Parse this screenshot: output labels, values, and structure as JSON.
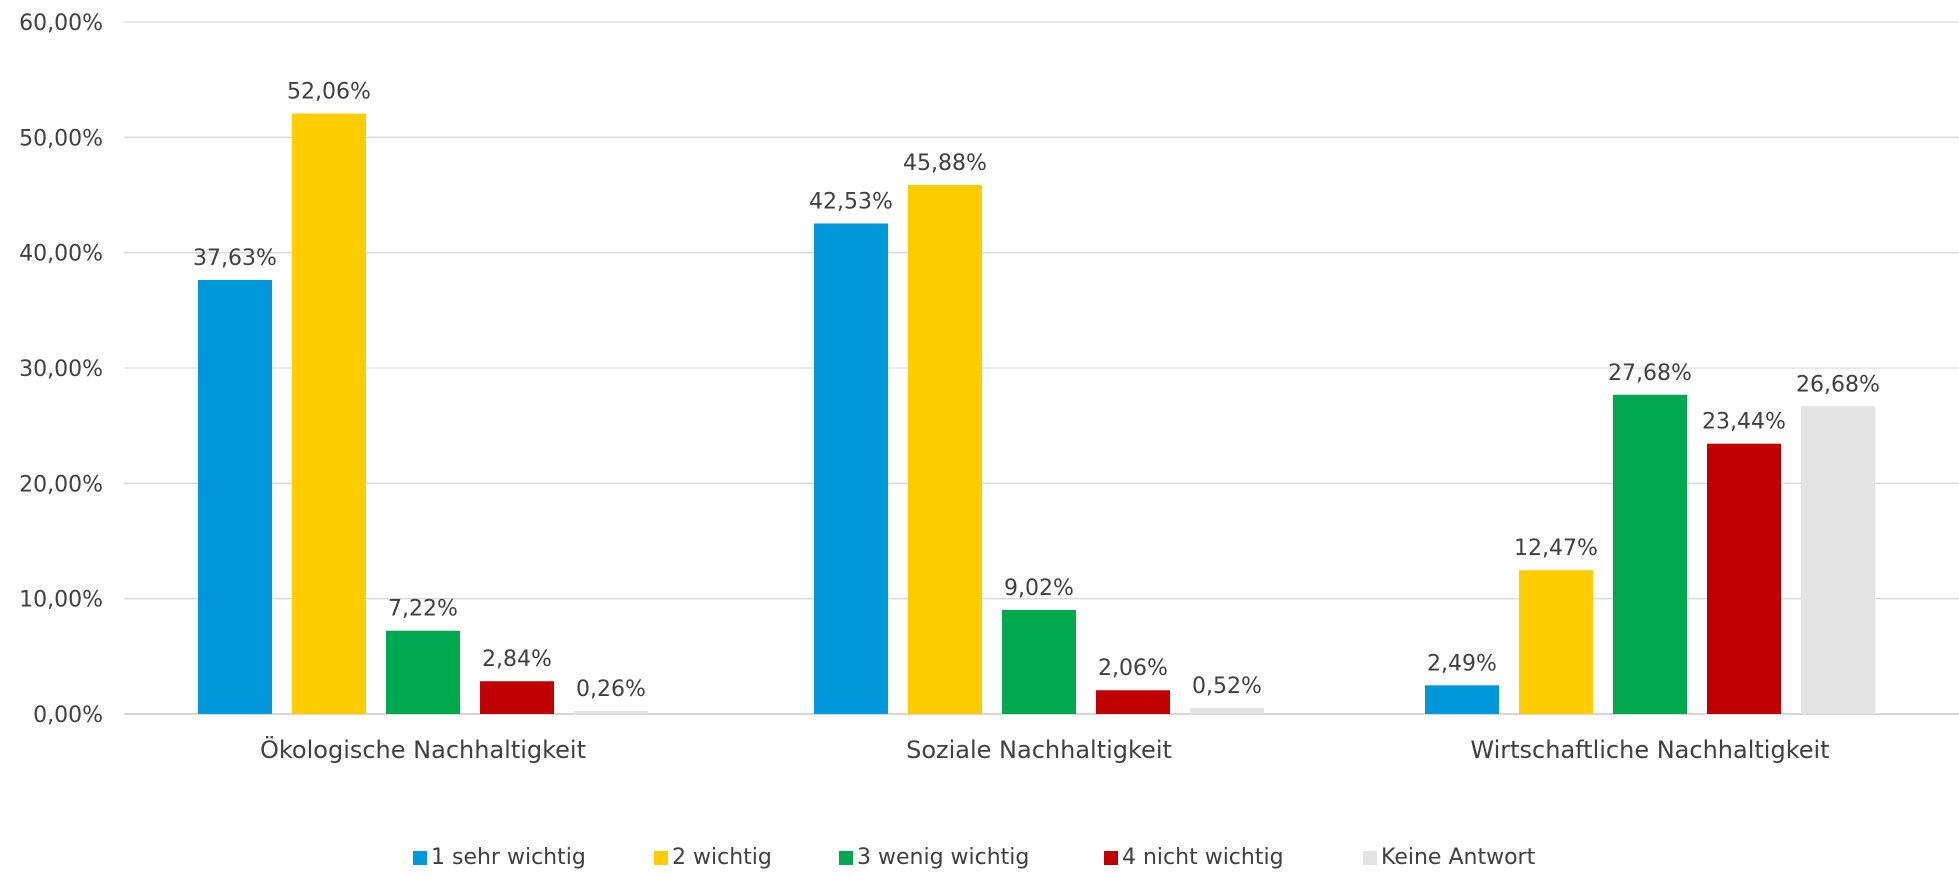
{
  "chart_data": {
    "type": "bar",
    "categories": [
      "Ökologische Nachhaltigkeit",
      "Soziale Nachhaltigkeit",
      "Wirtschaftliche Nachhaltigkeit"
    ],
    "series": [
      {
        "name": "1 sehr wichtig",
        "color": "#0097DB",
        "values": [
          37.63,
          42.53,
          2.49
        ],
        "labels": [
          "37,63%",
          "42,53%",
          "2,49%"
        ]
      },
      {
        "name": "2 wichtig",
        "color": "#FFCC00",
        "values": [
          52.06,
          45.88,
          12.47
        ],
        "labels": [
          "52,06%",
          "45,88%",
          "12,47%"
        ]
      },
      {
        "name": "3 wenig wichtig",
        "color": "#00A84F",
        "values": [
          7.22,
          9.02,
          27.68
        ],
        "labels": [
          "7,22%",
          "9,02%",
          "27,68%"
        ]
      },
      {
        "name": "4 nicht wichtig",
        "color": "#C00000",
        "values": [
          2.84,
          2.06,
          23.44
        ],
        "labels": [
          "2,84%",
          "2,06%",
          "23,44%"
        ]
      },
      {
        "name": "Keine Antwort",
        "color": "#E3E3E3",
        "values": [
          0.26,
          0.52,
          26.68
        ],
        "labels": [
          "0,26%",
          "0,52%",
          "26,68%"
        ]
      }
    ],
    "yticks": [
      "0,00%",
      "10,00%",
      "20,00%",
      "30,00%",
      "40,00%",
      "50,00%",
      "60,00%"
    ],
    "ylim": [
      0,
      60
    ],
    "grid": true,
    "legend_position": "bottom",
    "title": "",
    "xlabel": "",
    "ylabel": ""
  }
}
